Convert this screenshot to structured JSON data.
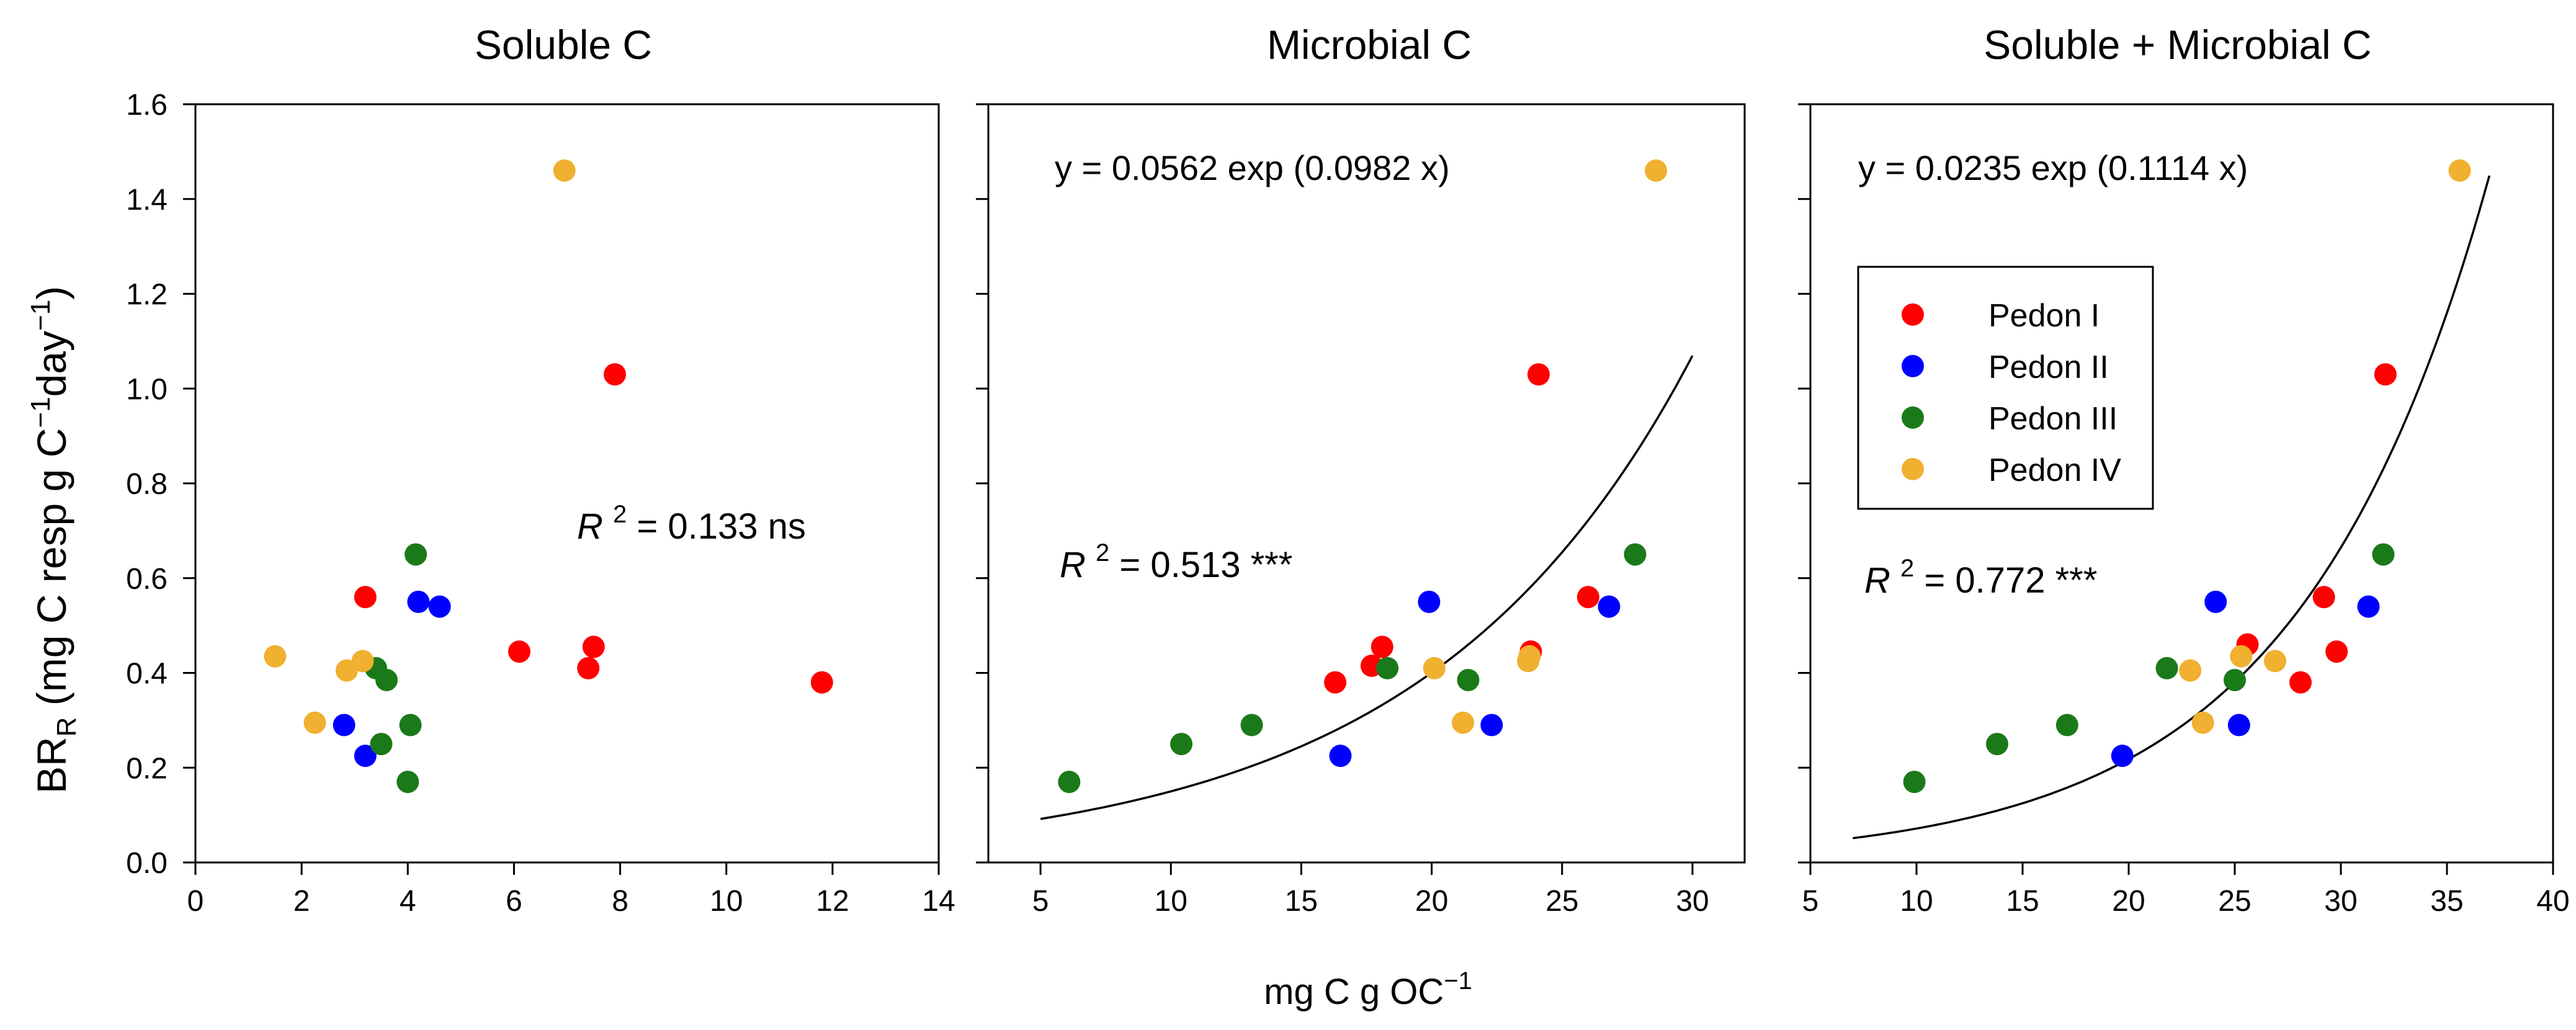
{
  "figure": {
    "ylabel_main": "BR",
    "ylabel_sub": "R",
    "ylabel_rest": " (mg C resp g C",
    "ylabel_sup1": "−1",
    "ylabel_day": "day",
    "ylabel_sup2": "−1",
    "ylabel_close": ")",
    "xlabel_main": "mg C g OC",
    "xlabel_sup": "−1",
    "legend": {
      "items": [
        {
          "label": "Pedon I",
          "color": "#ff0000"
        },
        {
          "label": "Pedon II",
          "color": "#0000ff"
        },
        {
          "label": "Pedon III",
          "color": "#1a7a1a"
        },
        {
          "label": "Pedon IV",
          "color": "#f0b030"
        }
      ]
    }
  },
  "chart_data": [
    {
      "type": "scatter",
      "title": "Soluble C",
      "xlim": [
        0,
        14
      ],
      "ylim": [
        0,
        1.6
      ],
      "xticks": [
        0,
        2,
        4,
        6,
        8,
        10,
        12,
        14
      ],
      "yticks": [
        0.0,
        0.2,
        0.4,
        0.6,
        0.8,
        1.0,
        1.2,
        1.4,
        1.6
      ],
      "r2_label": "R",
      "r2_sup": "2",
      "r2_value": " = 0.133 ns",
      "series": [
        {
          "name": "Pedon I",
          "color": "#ff0000",
          "points": [
            [
              3.2,
              0.56
            ],
            [
              6.1,
              0.445
            ],
            [
              7.4,
              0.41
            ],
            [
              7.5,
              0.455
            ],
            [
              7.9,
              1.03
            ],
            [
              11.8,
              0.38
            ]
          ]
        },
        {
          "name": "Pedon II",
          "color": "#0000ff",
          "points": [
            [
              2.8,
              0.29
            ],
            [
              3.2,
              0.225
            ],
            [
              4.2,
              0.55
            ],
            [
              4.6,
              0.54
            ]
          ]
        },
        {
          "name": "Pedon III",
          "color": "#1a7a1a",
          "points": [
            [
              3.4,
              0.41
            ],
            [
              3.5,
              0.25
            ],
            [
              3.6,
              0.385
            ],
            [
              4.0,
              0.17
            ],
            [
              4.05,
              0.29
            ],
            [
              4.15,
              0.65
            ]
          ]
        },
        {
          "name": "Pedon IV",
          "color": "#f0b030",
          "points": [
            [
              1.5,
              0.435
            ],
            [
              2.25,
              0.295
            ],
            [
              2.85,
              0.405
            ],
            [
              3.15,
              0.425
            ],
            [
              6.95,
              1.46
            ]
          ]
        }
      ]
    },
    {
      "type": "scatter",
      "title": "Microbial C",
      "xlim": [
        3,
        32
      ],
      "ylim": [
        0,
        1.6
      ],
      "xticks": [
        5,
        10,
        15,
        20,
        25,
        30
      ],
      "yticks": [
        0.0,
        0.2,
        0.4,
        0.6,
        0.8,
        1.0,
        1.2,
        1.4,
        1.6
      ],
      "equation": "y = 0.0562 exp (0.0982 x)",
      "fit": {
        "a": 0.0562,
        "b": 0.0982,
        "x_range": [
          5,
          30
        ]
      },
      "r2_label": "R",
      "r2_sup": "2",
      "r2_value": " = 0.513 ***",
      "series": [
        {
          "name": "Pedon I",
          "color": "#ff0000",
          "points": [
            [
              16.3,
              0.38
            ],
            [
              17.7,
              0.415
            ],
            [
              18.1,
              0.455
            ],
            [
              23.8,
              0.445
            ],
            [
              24.1,
              1.03
            ],
            [
              26.0,
              0.56
            ]
          ]
        },
        {
          "name": "Pedon II",
          "color": "#0000ff",
          "points": [
            [
              16.5,
              0.225
            ],
            [
              19.9,
              0.55
            ],
            [
              22.3,
              0.29
            ],
            [
              26.8,
              0.54
            ]
          ]
        },
        {
          "name": "Pedon III",
          "color": "#1a7a1a",
          "points": [
            [
              6.1,
              0.17
            ],
            [
              10.4,
              0.25
            ],
            [
              13.1,
              0.29
            ],
            [
              18.3,
              0.41
            ],
            [
              21.4,
              0.385
            ],
            [
              27.8,
              0.65
            ]
          ]
        },
        {
          "name": "Pedon IV",
          "color": "#f0b030",
          "points": [
            [
              20.1,
              0.41
            ],
            [
              21.2,
              0.295
            ],
            [
              23.7,
              0.425
            ],
            [
              23.75,
              0.435
            ],
            [
              28.6,
              1.46
            ]
          ]
        }
      ]
    },
    {
      "type": "scatter",
      "title": "Soluble + Microbial C",
      "xlim": [
        5,
        40
      ],
      "ylim": [
        0,
        1.6
      ],
      "xticks": [
        5,
        10,
        15,
        20,
        25,
        30,
        35,
        40
      ],
      "yticks": [
        0.0,
        0.2,
        0.4,
        0.6,
        0.8,
        1.0,
        1.2,
        1.4,
        1.6
      ],
      "equation": "y = 0.0235 exp (0.1114 x)",
      "fit": {
        "a": 0.0235,
        "b": 0.1114,
        "x_range": [
          7,
          37
        ]
      },
      "r2_label": "R",
      "r2_sup": "2",
      "r2_value": " = 0.772 ***",
      "legend": true,
      "series": [
        {
          "name": "Pedon I",
          "color": "#ff0000",
          "points": [
            [
              25.6,
              0.46
            ],
            [
              28.1,
              0.38
            ],
            [
              29.2,
              0.56
            ],
            [
              29.8,
              0.445
            ],
            [
              32.1,
              1.03
            ]
          ]
        },
        {
          "name": "Pedon II",
          "color": "#0000ff",
          "points": [
            [
              19.7,
              0.225
            ],
            [
              24.1,
              0.55
            ],
            [
              25.2,
              0.29
            ],
            [
              31.3,
              0.54
            ]
          ]
        },
        {
          "name": "Pedon III",
          "color": "#1a7a1a",
          "points": [
            [
              9.9,
              0.17
            ],
            [
              13.8,
              0.25
            ],
            [
              17.1,
              0.29
            ],
            [
              21.8,
              0.41
            ],
            [
              25.0,
              0.385
            ],
            [
              32.0,
              0.65
            ]
          ]
        },
        {
          "name": "Pedon IV",
          "color": "#f0b030",
          "points": [
            [
              22.9,
              0.405
            ],
            [
              23.5,
              0.295
            ],
            [
              25.3,
              0.435
            ],
            [
              26.9,
              0.425
            ],
            [
              35.6,
              1.46
            ]
          ]
        }
      ]
    }
  ]
}
